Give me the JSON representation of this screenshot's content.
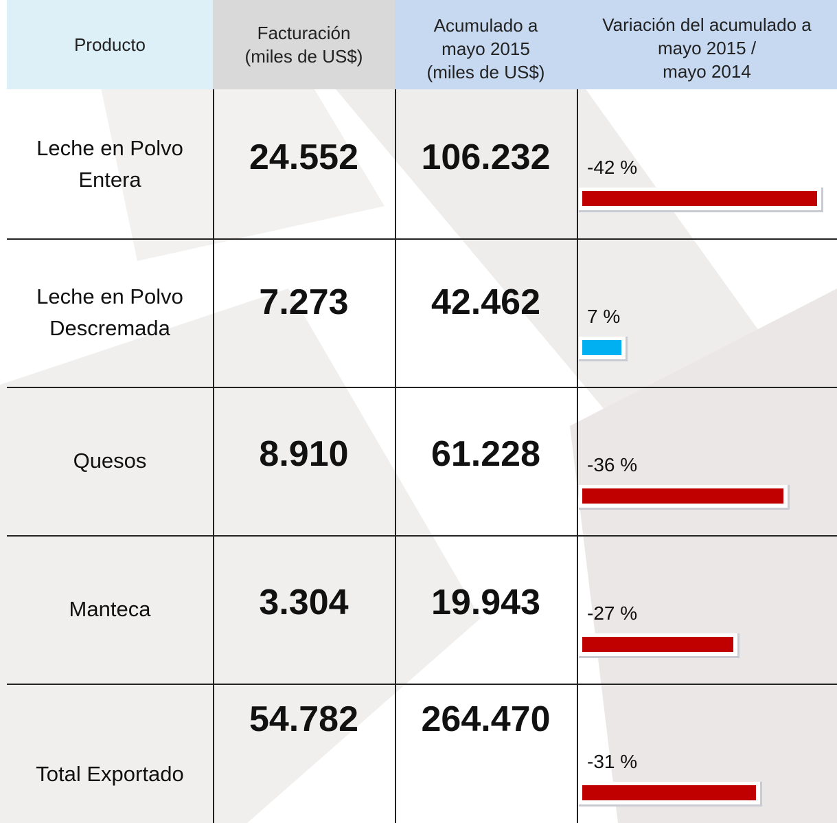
{
  "table": {
    "headers": [
      [
        "Producto"
      ],
      [
        "Facturación",
        "(miles de US$)"
      ],
      [
        "Acumulado a",
        "mayo 2015",
        "(miles de US$)"
      ],
      [
        "Variación del acumulado a",
        "mayo 2015 /",
        "mayo 2014"
      ]
    ],
    "rows": [
      {
        "product": [
          "Leche en Polvo",
          "Entera"
        ],
        "facturacion": "24.552",
        "acumulado": "106.232",
        "variacion": -42,
        "variacion_label": "-42 %"
      },
      {
        "product": [
          "Leche en Polvo",
          "Descremada"
        ],
        "facturacion": "7.273",
        "acumulado": "42.462",
        "variacion": 7,
        "variacion_label": "7 %"
      },
      {
        "product": [
          "Quesos"
        ],
        "facturacion": "8.910",
        "acumulado": "61.228",
        "variacion": -36,
        "variacion_label": "-36 %"
      },
      {
        "product": [
          "Manteca"
        ],
        "facturacion": "3.304",
        "acumulado": "19.943",
        "variacion": -27,
        "variacion_label": "-27 %"
      },
      {
        "product": [
          "Total Exportado"
        ],
        "facturacion": "54.782",
        "acumulado": "264.470",
        "variacion": -31,
        "variacion_label": "-31 %"
      }
    ],
    "colors": {
      "negative": "#c00000",
      "positive": "#00b0f0"
    }
  }
}
